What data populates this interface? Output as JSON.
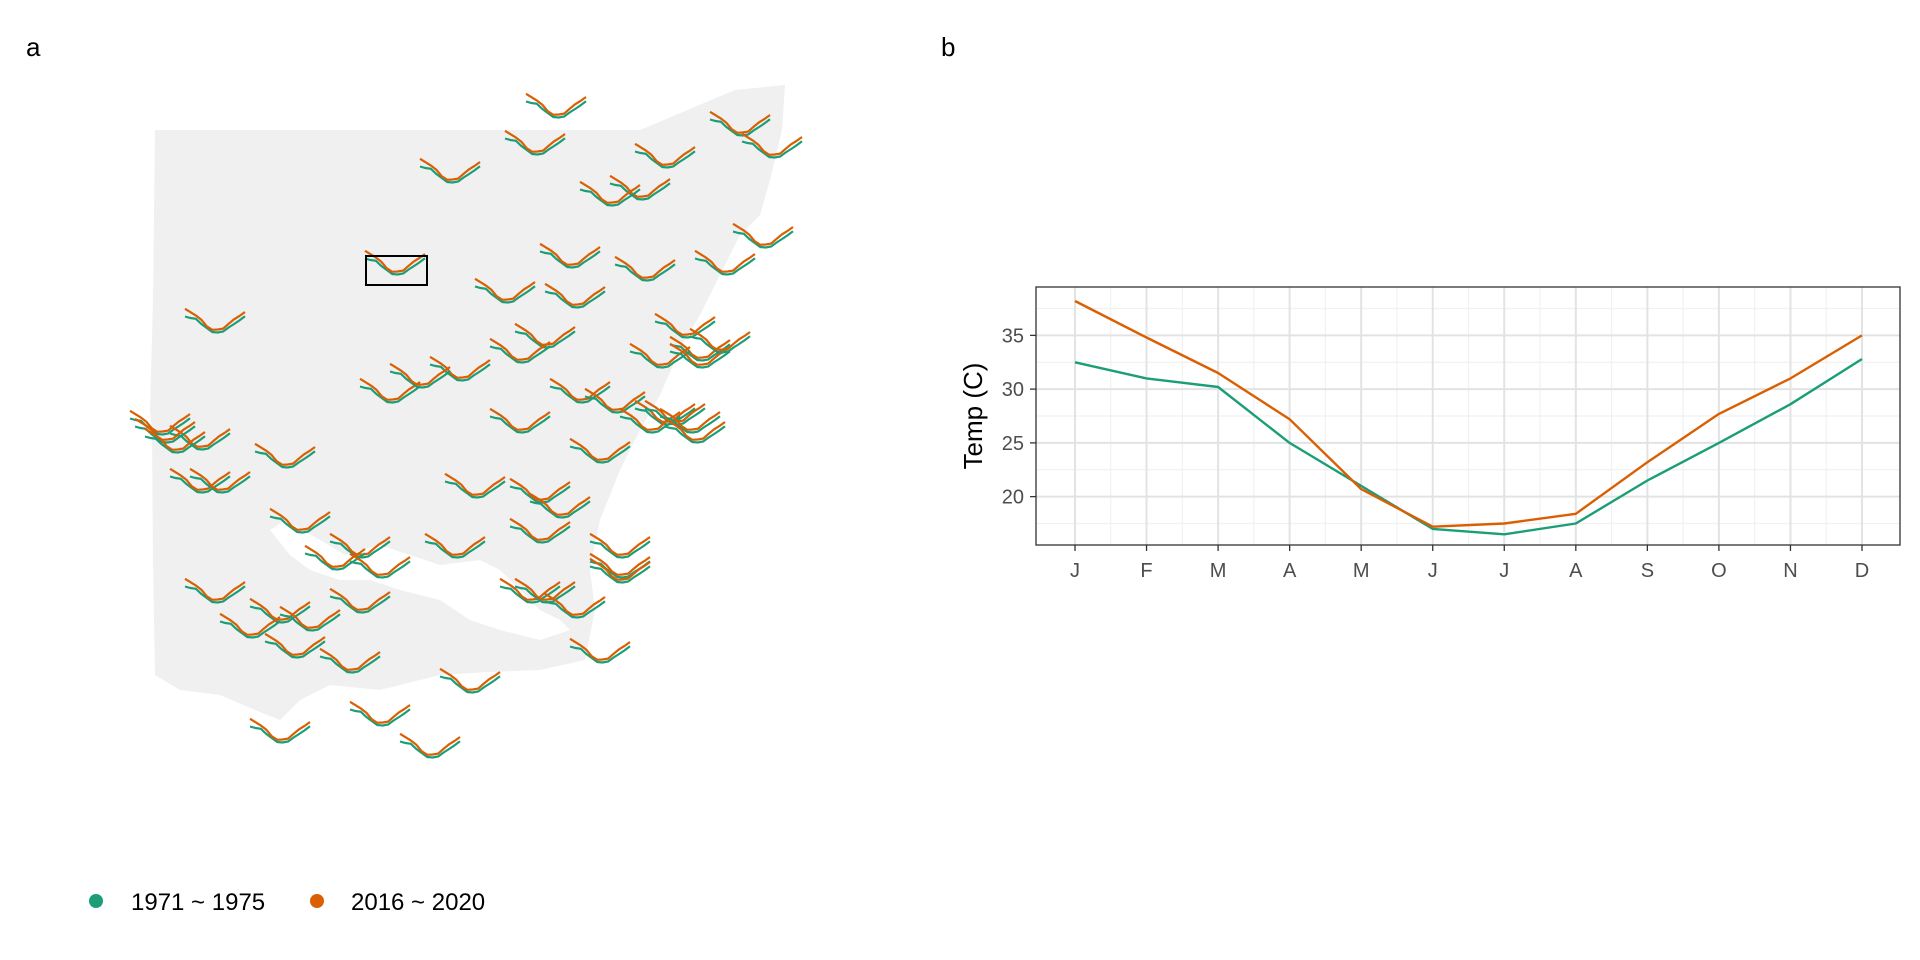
{
  "panels": {
    "a": "a",
    "b": "b"
  },
  "colors": {
    "early": "#1b9e77",
    "late": "#d95f02",
    "land": "#f0f0f0"
  },
  "legend": [
    {
      "label": "1971 ~ 1975",
      "color": "#1b9e77"
    },
    {
      "label": "2016 ~ 2020",
      "color": "#d95f02"
    }
  ],
  "chart_data": [
    {
      "type": "line",
      "panel": "b",
      "title": "",
      "xlabel": "",
      "ylabel": "Temp (C)",
      "categories": [
        "J",
        "F",
        "M",
        "A",
        "M",
        "J",
        "J",
        "A",
        "S",
        "O",
        "N",
        "D"
      ],
      "ylim": [
        15.5,
        39.5
      ],
      "yticks": [
        20,
        25,
        30,
        35
      ],
      "grid": true,
      "legend_placement": "bottom-left",
      "series": [
        {
          "name": "1971 ~ 1975",
          "color": "#1b9e77",
          "values": [
            32.5,
            31.0,
            30.2,
            25.0,
            21.0,
            17.0,
            16.5,
            17.5,
            21.5,
            25.0,
            28.6,
            32.8
          ]
        },
        {
          "name": "2016 ~ 2020",
          "color": "#d95f02",
          "values": [
            38.2,
            34.8,
            31.5,
            27.2,
            20.7,
            17.2,
            17.5,
            18.4,
            23.2,
            27.7,
            31.0,
            35.0
          ]
        }
      ]
    },
    {
      "type": "line",
      "panel": "a",
      "title": "",
      "description_of_marks": "small seasonal temperature glyph per station over a map",
      "series": [
        {
          "name": "1971 ~ 1975",
          "color": "#1b9e77"
        },
        {
          "name": "2016 ~ 2020",
          "color": "#d95f02"
        }
      ]
    }
  ]
}
